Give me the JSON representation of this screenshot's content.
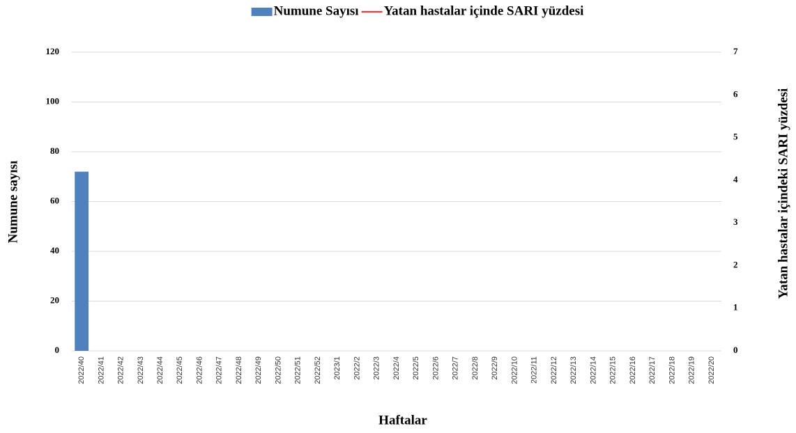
{
  "chart_data": {
    "type": "bar",
    "x_label": "Haftalar",
    "y_label": "Numune sayısı",
    "y2_label": "Yatan hastalar içindeki SARI yüzdesi",
    "categories": [
      "2022/40",
      "2022/41",
      "2022/42",
      "2022/43",
      "2022/44",
      "2022/45",
      "2022/46",
      "2022/47",
      "2022/48",
      "2022/49",
      "2022/50",
      "2022/51",
      "2022/52",
      "2023/1",
      "2022/2",
      "2022/3",
      "2022/4",
      "2022/5",
      "2022/6",
      "2022/7",
      "2022/8",
      "2022/9",
      "2022/10",
      "2022/11",
      "2022/12",
      "2022/13",
      "2022/14",
      "2022/15",
      "2022/16",
      "2022/17",
      "2022/18",
      "2022/19",
      "2022/20"
    ],
    "series": [
      {
        "name": "Numune Sayısı",
        "color": "#4e81bd",
        "type": "bar",
        "values": [
          72,
          0,
          0,
          0,
          0,
          0,
          0,
          0,
          0,
          0,
          0,
          0,
          0,
          0,
          0,
          0,
          0,
          0,
          0,
          0,
          0,
          0,
          0,
          0,
          0,
          0,
          0,
          0,
          0,
          0,
          0,
          0,
          0
        ]
      },
      {
        "name": "Yatan hastalar içinde SARI yüzdesi",
        "color": "#c0504d",
        "type": "line",
        "axis": "y2",
        "values": [
          null,
          null,
          null,
          null,
          null,
          null,
          null,
          null,
          null,
          null,
          null,
          null,
          null,
          null,
          null,
          null,
          null,
          null,
          null,
          null,
          null,
          null,
          null,
          null,
          null,
          null,
          null,
          null,
          null,
          null,
          null,
          null,
          null
        ]
      }
    ],
    "ylim": [
      0,
      120
    ],
    "yticks": [
      0,
      20,
      40,
      60,
      80,
      100,
      120
    ],
    "y2lim": [
      0,
      7
    ],
    "y2ticks": [
      0,
      1,
      2,
      3,
      4,
      5,
      6,
      7
    ],
    "grid": true,
    "legend": "top"
  }
}
